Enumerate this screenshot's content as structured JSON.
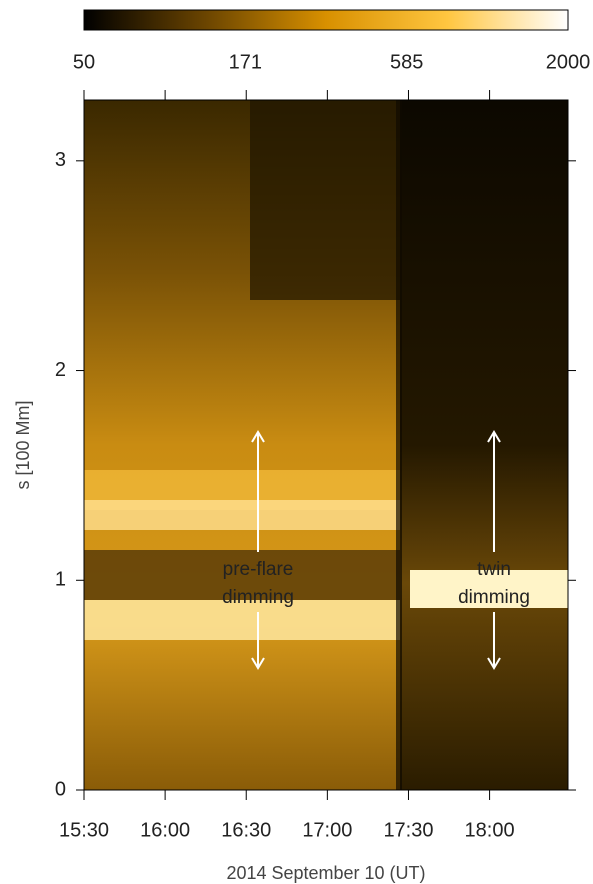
{
  "chart_data": {
    "type": "image",
    "xlabel": "2014 September 10 (UT)",
    "ylabel": "s [100 Mm]",
    "xlim": [
      930,
      1109
    ],
    "xticks": [
      {
        "value": 930,
        "label": "15:30"
      },
      {
        "value": 960,
        "label": "16:00"
      },
      {
        "value": 990,
        "label": "16:30"
      },
      {
        "value": 1020,
        "label": "17:00"
      },
      {
        "value": 1050,
        "label": "17:30"
      },
      {
        "value": 1080,
        "label": "18:00"
      }
    ],
    "ylim": [
      0,
      3.29
    ],
    "yticks": [
      0,
      1,
      2,
      3
    ],
    "colorbar": {
      "clim": [
        50,
        2000
      ],
      "log": true,
      "ticks": [
        50,
        171,
        585,
        2000
      ],
      "colors": [
        "#000000",
        "#6a4400",
        "#d89000",
        "#ffc640",
        "#ffffff"
      ]
    },
    "annotations": [
      [
        "pre-flare",
        "dimming"
      ],
      [
        "twin",
        "dimming"
      ]
    ]
  }
}
